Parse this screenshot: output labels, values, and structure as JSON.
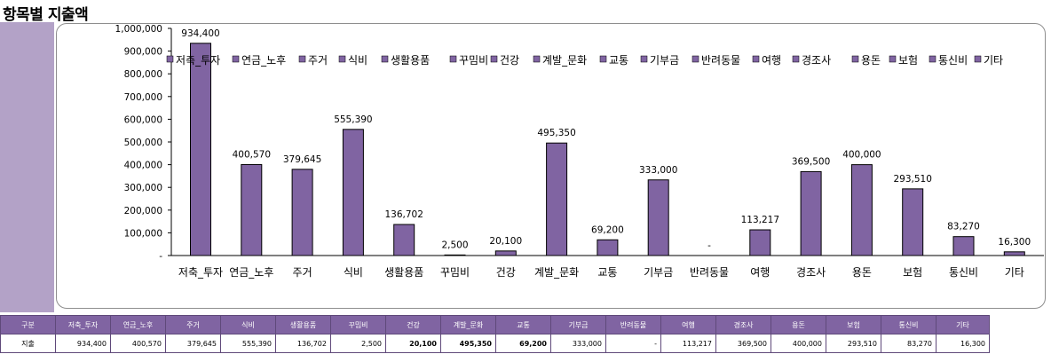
{
  "page": {
    "title": "항목별 지출액"
  },
  "colors": {
    "bar": "#8064a2",
    "bar_border": "#000000",
    "side_panel": "#b3a2c7",
    "table_header": "#8064a2"
  },
  "chart_data": {
    "type": "bar",
    "title": "",
    "xlabel": "",
    "ylabel": "",
    "ylim": [
      0,
      1000000
    ],
    "y_ticks": [
      0,
      100000,
      200000,
      300000,
      400000,
      500000,
      600000,
      700000,
      800000,
      900000,
      1000000
    ],
    "y_tick_labels": [
      "-",
      "100,000",
      "200,000",
      "300,000",
      "400,000",
      "500,000",
      "600,000",
      "700,000",
      "800,000",
      "900,000",
      "1,000,000"
    ],
    "legend_position": "top",
    "categories": [
      "저축_투자",
      "연금_노후",
      "주거",
      "식비",
      "생활용품",
      "꾸밈비",
      "건강",
      "계발_문화",
      "교통",
      "기부금",
      "반려동물",
      "여행",
      "경조사",
      "용돈",
      "보험",
      "통신비",
      "기타"
    ],
    "values": [
      934400,
      400570,
      379645,
      555390,
      136702,
      2500,
      20100,
      495350,
      69200,
      333000,
      0,
      113217,
      369500,
      400000,
      293510,
      83270,
      16300
    ],
    "data_labels": [
      "934,400",
      "400,570",
      "379,645",
      "555,390",
      "136,702",
      "2,500",
      "20,100",
      "495,350",
      "69,200",
      "333,000",
      "-",
      "113,217",
      "369,500",
      "400,000",
      "293,510",
      "83,270",
      "16,300"
    ]
  },
  "table": {
    "header_label": "구분",
    "row_label": "지출",
    "headers": [
      "저축_투자",
      "연금_노후",
      "주거",
      "식비",
      "생활용품",
      "꾸밈비",
      "건강",
      "계발_문화",
      "교통",
      "기부금",
      "반려동물",
      "여행",
      "경조사",
      "용돈",
      "보험",
      "통신비",
      "기타"
    ],
    "values": [
      "934,400",
      "400,570",
      "379,645",
      "555,390",
      "136,702",
      "2,500",
      "20,100",
      "495,350",
      "69,200",
      "333,000",
      "-",
      "113,217",
      "369,500",
      "400,000",
      "293,510",
      "83,270",
      "16,300"
    ],
    "bold_cells": [
      6,
      7,
      8
    ]
  }
}
